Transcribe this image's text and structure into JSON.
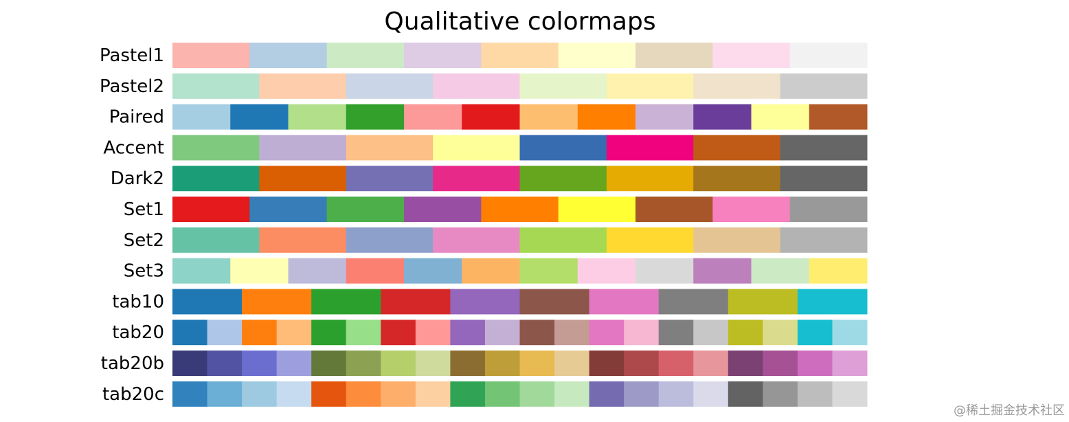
{
  "title": "Qualitative colormaps",
  "colormaps": [
    {
      "name": "Pastel1",
      "colors": [
        "#fbb4ae",
        "#b3cde3",
        "#ccebc5",
        "#decbe4",
        "#fed9a6",
        "#ffffcc",
        "#e5d8bd",
        "#fddaec",
        "#f2f2f2"
      ]
    },
    {
      "name": "Pastel2",
      "colors": [
        "#b3e2cd",
        "#fdcdac",
        "#cbd5e8",
        "#f4cae4",
        "#e6f5c9",
        "#fff2ae",
        "#f1e2cc",
        "#cccccc"
      ]
    },
    {
      "name": "Paired",
      "colors": [
        "#a6cee3",
        "#1f78b4",
        "#b2df8a",
        "#33a02c",
        "#fb9a99",
        "#e31a1c",
        "#fdbf6f",
        "#ff7f00",
        "#cab2d6",
        "#6a3d9a",
        "#ffff99",
        "#b15928"
      ]
    },
    {
      "name": "Accent",
      "colors": [
        "#7fc97f",
        "#beaed4",
        "#fdc086",
        "#ffff99",
        "#386cb0",
        "#f0027f",
        "#bf5b17",
        "#666666"
      ]
    },
    {
      "name": "Dark2",
      "colors": [
        "#1b9e77",
        "#d95f02",
        "#7570b3",
        "#e7298a",
        "#66a61e",
        "#e6ab02",
        "#a6761d",
        "#666666"
      ]
    },
    {
      "name": "Set1",
      "colors": [
        "#e41a1c",
        "#377eb8",
        "#4daf4a",
        "#984ea3",
        "#ff7f00",
        "#ffff33",
        "#a65628",
        "#f781bf",
        "#999999"
      ]
    },
    {
      "name": "Set2",
      "colors": [
        "#66c2a5",
        "#fc8d62",
        "#8da0cb",
        "#e78ac3",
        "#a6d854",
        "#ffd92f",
        "#e5c494",
        "#b3b3b3"
      ]
    },
    {
      "name": "Set3",
      "colors": [
        "#8dd3c7",
        "#ffffb3",
        "#bebada",
        "#fb8072",
        "#80b1d3",
        "#fdb462",
        "#b3de69",
        "#fccde5",
        "#d9d9d9",
        "#bc80bd",
        "#ccebc5",
        "#ffed6f"
      ]
    },
    {
      "name": "tab10",
      "colors": [
        "#1f77b4",
        "#ff7f0e",
        "#2ca02c",
        "#d62728",
        "#9467bd",
        "#8c564b",
        "#e377c2",
        "#7f7f7f",
        "#bcbd22",
        "#17becf"
      ]
    },
    {
      "name": "tab20",
      "colors": [
        "#1f77b4",
        "#aec7e8",
        "#ff7f0e",
        "#ffbb78",
        "#2ca02c",
        "#98df8a",
        "#d62728",
        "#ff9896",
        "#9467bd",
        "#c5b0d5",
        "#8c564b",
        "#c49c94",
        "#e377c2",
        "#f7b6d2",
        "#7f7f7f",
        "#c7c7c7",
        "#bcbd22",
        "#dbdb8d",
        "#17becf",
        "#9edae5"
      ]
    },
    {
      "name": "tab20b",
      "colors": [
        "#393b79",
        "#5254a3",
        "#6b6ecf",
        "#9c9ede",
        "#637939",
        "#8ca252",
        "#b5cf6b",
        "#cedb9c",
        "#8c6d31",
        "#bd9e39",
        "#e7ba52",
        "#e7cb94",
        "#843c39",
        "#ad494a",
        "#d6616b",
        "#e7969c",
        "#7b4173",
        "#a55194",
        "#ce6dbd",
        "#de9ed6"
      ]
    },
    {
      "name": "tab20c",
      "colors": [
        "#3182bd",
        "#6baed6",
        "#9ecae1",
        "#c6dbef",
        "#e6550d",
        "#fd8d3c",
        "#fdae6b",
        "#fdd0a2",
        "#31a354",
        "#74c476",
        "#a1d99b",
        "#c7e9c0",
        "#756bb1",
        "#9e9ac8",
        "#bcbddc",
        "#dadaeb",
        "#636363",
        "#969696",
        "#bdbdbd",
        "#d9d9d9"
      ]
    }
  ],
  "watermark": "@稀土掘金技术社区"
}
